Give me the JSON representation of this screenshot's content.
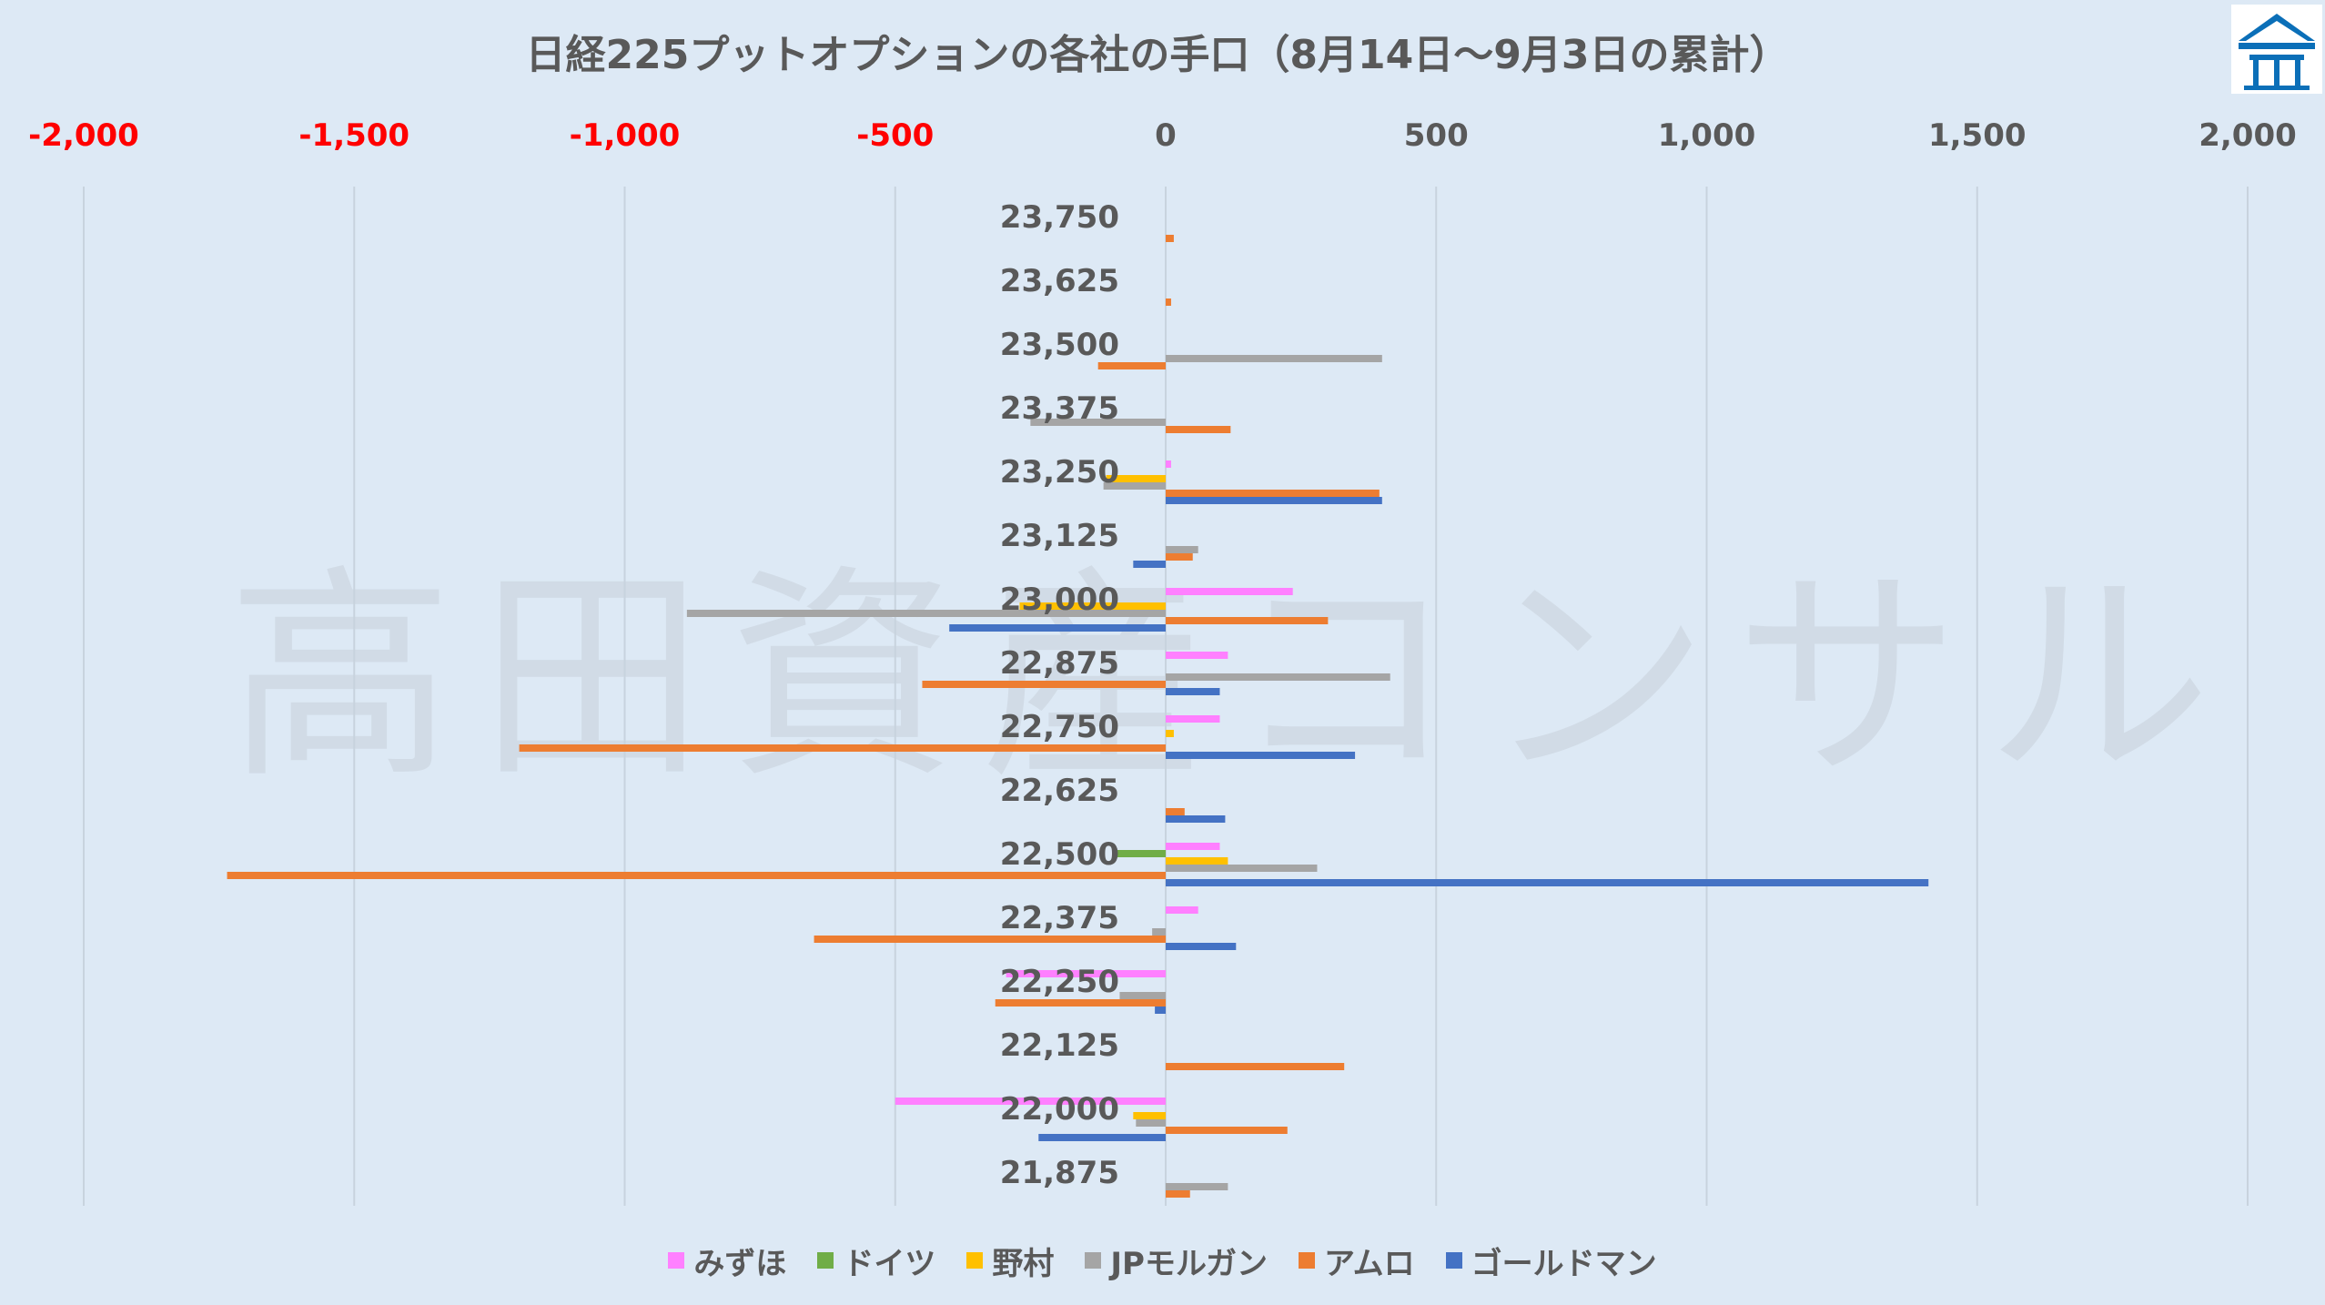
{
  "watermark": "高田資産コンサル",
  "logo": {
    "icon": "building-roof-logo-icon",
    "color": "#0b6fb8"
  },
  "colors": {
    "negative_tick": "#ff0000",
    "tick": "#595959",
    "grid": "#c8d3de",
    "background": "#dde9f5"
  },
  "chart_data": {
    "type": "bar",
    "orientation": "horizontal",
    "title": "日経225プットオプションの各社の手口（8月14日～9月3日の累計）",
    "xlim": [
      -2000,
      2000
    ],
    "x_ticks": [
      -2000,
      -1500,
      -1000,
      -500,
      0,
      500,
      1000,
      1500,
      2000
    ],
    "x_tick_labels": [
      "-2,000",
      "-1,500",
      "-1,000",
      "-500",
      "0",
      "500",
      "1,000",
      "1,500",
      "2,000"
    ],
    "categories": [
      "23,750",
      "23,625",
      "23,500",
      "23,375",
      "23,250",
      "23,125",
      "23,000",
      "22,875",
      "22,750",
      "22,625",
      "22,500",
      "22,375",
      "22,250",
      "22,125",
      "22,000",
      "21,875"
    ],
    "legend_position": "bottom",
    "grid": true,
    "series": [
      {
        "name": "みずほ",
        "color": "#ff80ff",
        "values": [
          0,
          0,
          0,
          0,
          10,
          0,
          235,
          115,
          100,
          0,
          100,
          60,
          -295,
          0,
          -500,
          0
        ]
      },
      {
        "name": "ドイツ",
        "color": "#70ad47",
        "values": [
          0,
          0,
          0,
          0,
          0,
          0,
          0,
          0,
          0,
          0,
          -95,
          0,
          0,
          0,
          0,
          0
        ]
      },
      {
        "name": "野村",
        "color": "#ffc000",
        "values": [
          0,
          0,
          0,
          0,
          -110,
          0,
          -270,
          0,
          15,
          0,
          115,
          0,
          0,
          0,
          -60,
          0
        ]
      },
      {
        "name": "JPモルガン",
        "color": "#a5a5a5",
        "values": [
          0,
          0,
          400,
          -250,
          -115,
          60,
          -885,
          415,
          0,
          0,
          280,
          -25,
          -85,
          0,
          -55,
          115
        ]
      },
      {
        "name": "アムロ",
        "color": "#ed7d31",
        "values": [
          15,
          10,
          -125,
          120,
          395,
          50,
          300,
          -450,
          -1195,
          35,
          -1735,
          -650,
          -315,
          330,
          225,
          45
        ]
      },
      {
        "name": "ゴールドマン",
        "color": "#4472c4",
        "values": [
          0,
          0,
          0,
          0,
          400,
          -60,
          -400,
          100,
          350,
          110,
          1410,
          130,
          -20,
          0,
          -235,
          0
        ]
      }
    ]
  }
}
